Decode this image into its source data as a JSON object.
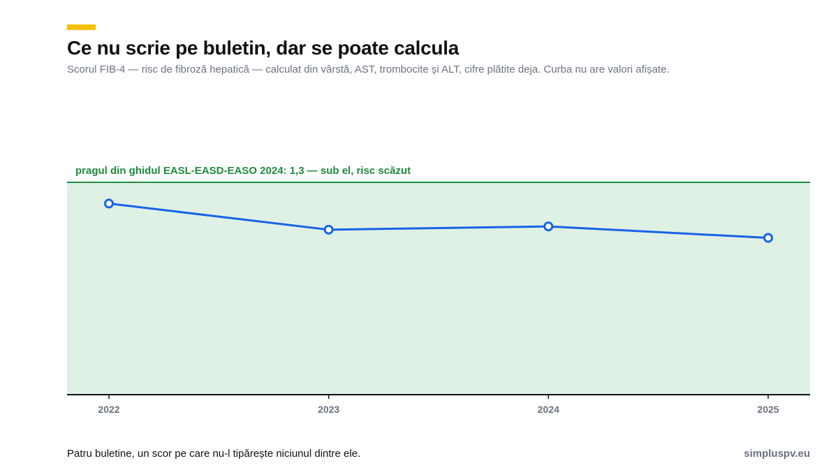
{
  "header": {
    "title": "Ce nu scrie pe buletin, dar se poate calcula",
    "subtitle": "Scorul FIB-4 — risc de fibroză hepatică — calculat din vârstă, AST, trombocite și ALT, cifre plătite deja. Curba nu are valori afișate."
  },
  "footer": {
    "note": "Patru buletine, un scor pe care nu-l tipărește niciunul dintre ele.",
    "source": "simpluspv.eu"
  },
  "colors": {
    "accent": "#f5c000",
    "line": "#1663e8",
    "zone_fill": "#def1e4",
    "threshold": "#1e8a3e",
    "axis": "#111111",
    "tick_text": "#6b7280"
  },
  "chart_data": {
    "type": "line",
    "x": [
      "2022",
      "2023",
      "2024",
      "2025"
    ],
    "series": [
      {
        "values": [
          1.17,
          1.01,
          1.03,
          0.96
        ]
      }
    ],
    "ylim": [
      0,
      1.3
    ],
    "threshold": {
      "value": 1.3,
      "label": "pragul din ghidul EASL-EASD-EASO 2024: 1,3 — sub el, risc scăzut"
    },
    "y_tick_labels": "none",
    "grid": false,
    "legend": "none"
  }
}
